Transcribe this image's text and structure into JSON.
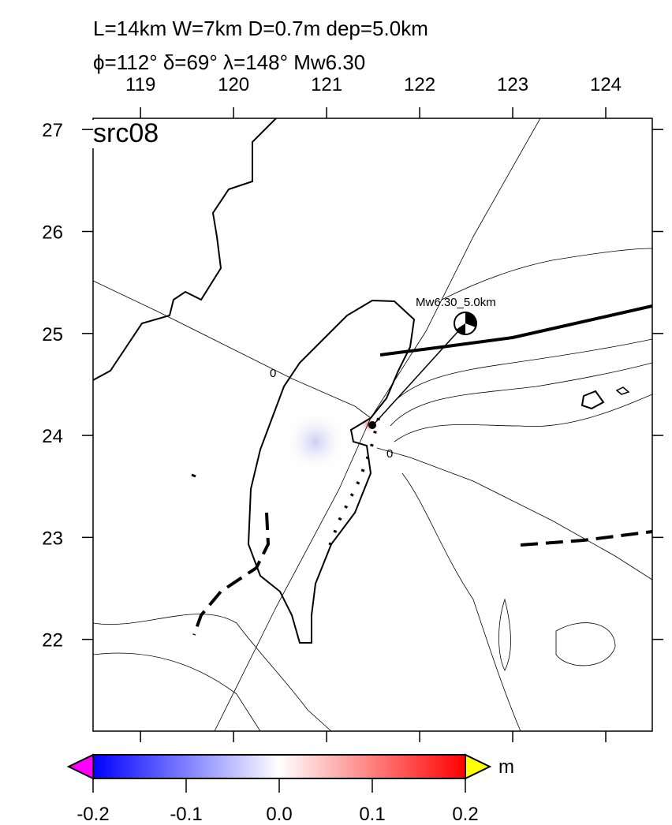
{
  "header": {
    "line1": "L=14km W=7km D=0.7m dep=5.0km",
    "line2": "ϕ=112° δ=69° λ=148° Mw6.30"
  },
  "panel_label": "src08",
  "source_label": "Mw6.30_5.0km",
  "contour_labels": [
    "0",
    "0"
  ],
  "map": {
    "xlim": [
      118.49,
      124.5
    ],
    "ylim": [
      21.1,
      27.11
    ],
    "xticks": [
      119,
      120,
      121,
      122,
      123,
      124
    ],
    "yticks": [
      22,
      23,
      24,
      25,
      26,
      27
    ]
  },
  "colorbar": {
    "lim": [
      -0.2,
      0.2
    ],
    "ticks": [
      {
        "value": -0.2,
        "label": "-0.2"
      },
      {
        "value": -0.1,
        "label": "-0.1"
      },
      {
        "value": 0,
        "label": "0.0"
      },
      {
        "value": 0.1,
        "label": "0.1"
      },
      {
        "value": 0.2,
        "label": "0.2"
      }
    ],
    "unit": "m"
  }
}
